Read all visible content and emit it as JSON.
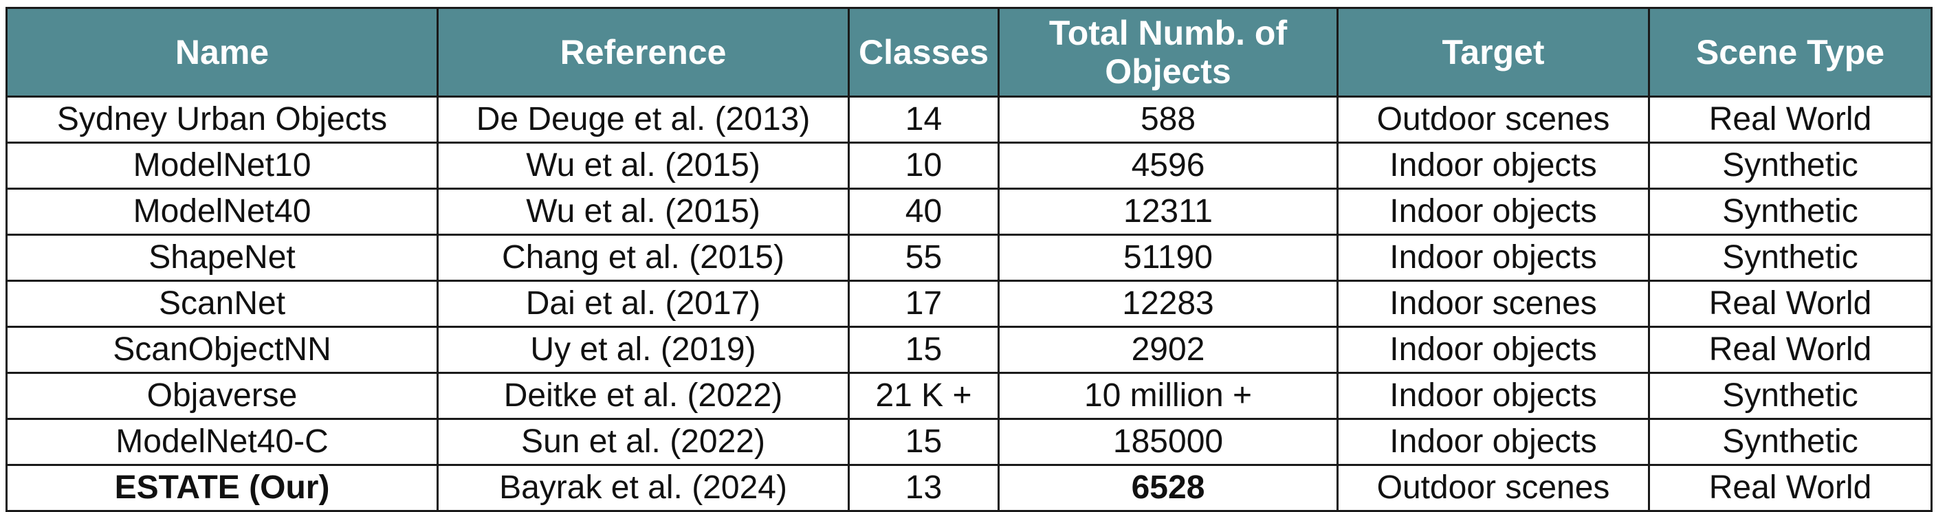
{
  "table": {
    "columns": [
      "Name",
      "Reference",
      "Classes",
      "Total Numb. of Objects",
      "Target",
      "Scene Type"
    ],
    "rows": [
      [
        "Sydney Urban Objects",
        "De Deuge et al. (2013)",
        "14",
        "588",
        "Outdoor scenes",
        "Real World"
      ],
      [
        "ModelNet10",
        "Wu et al. (2015)",
        "10",
        "4596",
        "Indoor objects",
        "Synthetic"
      ],
      [
        "ModelNet40",
        "Wu et al. (2015)",
        "40",
        "12311",
        "Indoor objects",
        "Synthetic"
      ],
      [
        "ShapeNet",
        "Chang et al. (2015)",
        "55",
        "51190",
        "Indoor objects",
        "Synthetic"
      ],
      [
        "ScanNet",
        "Dai et al. (2017)",
        "17",
        "12283",
        "Indoor scenes",
        "Real World"
      ],
      [
        "ScanObjectNN",
        "Uy et al. (2019)",
        "15",
        "2902",
        "Indoor objects",
        "Real World"
      ],
      [
        "Objaverse",
        "Deitke et al. (2022)",
        "21 K +",
        "10 million +",
        "Indoor objects",
        "Synthetic"
      ],
      [
        "ModelNet40-C",
        "Sun et al. (2022)",
        "15",
        "185000",
        "Indoor objects",
        "Synthetic"
      ],
      [
        "ESTATE (Our)",
        "Bayrak et al. (2024)",
        "13",
        "6528",
        "Outdoor scenes",
        "Real World"
      ]
    ]
  },
  "colors": {
    "header_background": "#528a92",
    "header_text": "#ffffff",
    "highlight_name": "#e8271c"
  }
}
